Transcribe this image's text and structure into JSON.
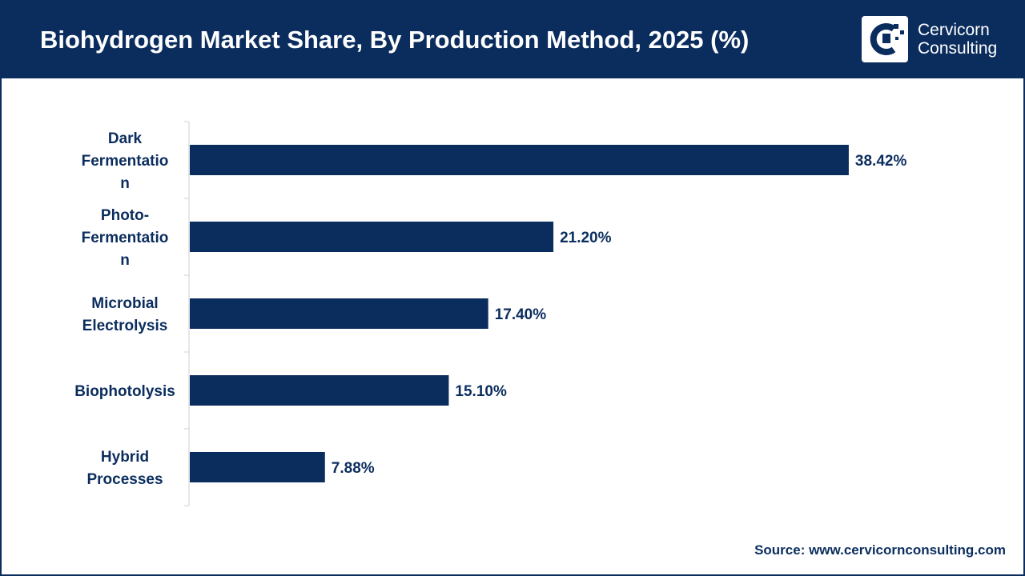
{
  "header": {
    "title": "Biohydrogen Market Share, By Production Method, 2025 (%)"
  },
  "logo": {
    "line1": "Cervicorn",
    "line2": "Consulting"
  },
  "chart_data": {
    "type": "bar",
    "orientation": "horizontal",
    "categories": [
      [
        "Dark",
        "Fermentatio",
        "n"
      ],
      [
        "Photo-",
        "Fermentatio",
        "n"
      ],
      [
        "Microbial",
        "Electrolysis"
      ],
      [
        "Biophotolysis"
      ],
      [
        "Hybrid",
        "Processes"
      ]
    ],
    "values": [
      38.42,
      21.2,
      17.4,
      15.1,
      7.88
    ],
    "data_labels": [
      "38.42%",
      "21.20%",
      "17.40%",
      "15.10%",
      "7.88%"
    ],
    "xlim": [
      0,
      48
    ],
    "grid": false,
    "bar_color": "#0b2d5e"
  },
  "source": "Source: www.cervicornconsulting.com",
  "colors": {
    "brand": "#0b2d5e",
    "background": "#ffffff"
  }
}
